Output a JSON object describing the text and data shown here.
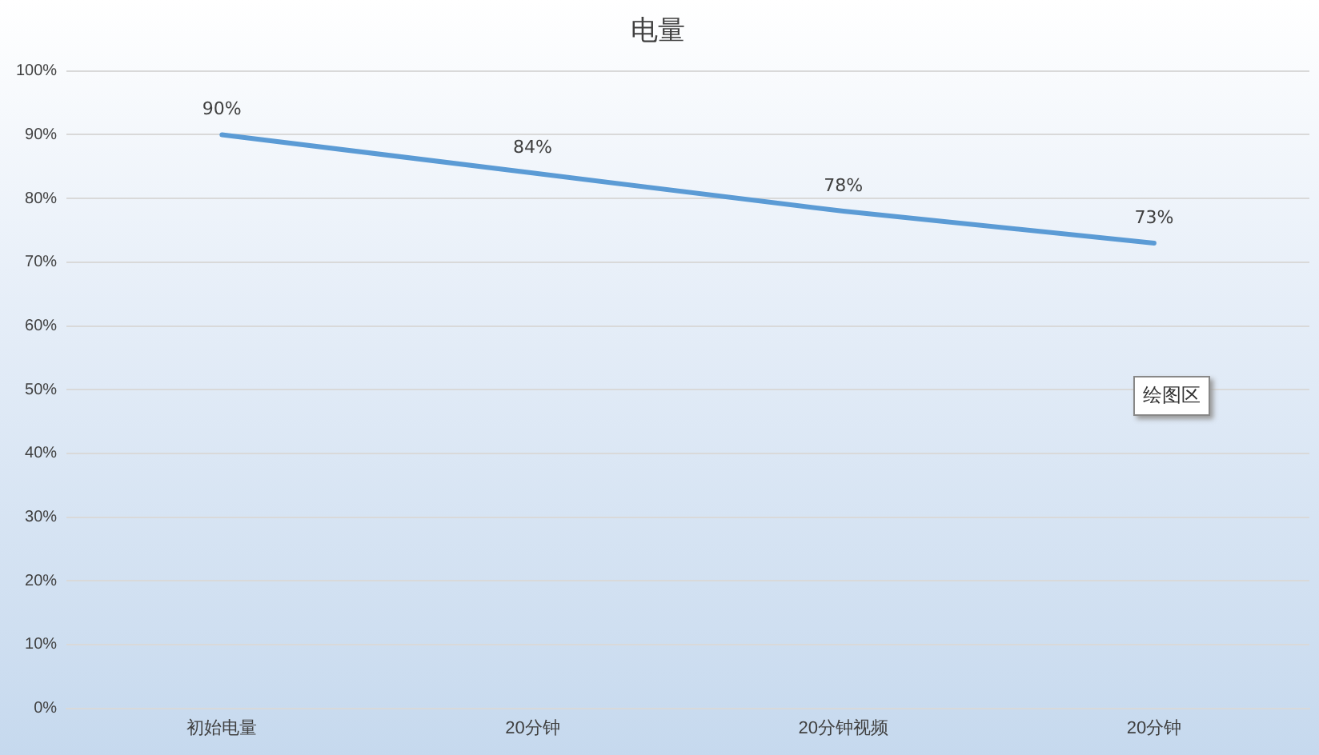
{
  "chart_data": {
    "type": "line",
    "title": "电量",
    "categories": [
      "初始电量",
      "20分钟",
      "20分钟视频",
      "20分钟"
    ],
    "series": [
      {
        "color": "#5b9bd5",
        "values": [
          90,
          84,
          78,
          73
        ],
        "value_labels": [
          "90%",
          "84%",
          "78%",
          "73%"
        ]
      }
    ],
    "ylim": [
      0,
      100
    ],
    "yticks": [
      {
        "value": 0,
        "label": "0%"
      },
      {
        "value": 10,
        "label": "10%"
      },
      {
        "value": 20,
        "label": "20%"
      },
      {
        "value": 30,
        "label": "30%"
      },
      {
        "value": 40,
        "label": "40%"
      },
      {
        "value": 50,
        "label": "50%"
      },
      {
        "value": 60,
        "label": "60%"
      },
      {
        "value": 70,
        "label": "70%"
      },
      {
        "value": 80,
        "label": "80%"
      },
      {
        "value": 90,
        "label": "90%"
      },
      {
        "value": 100,
        "label": "100%"
      }
    ],
    "grid": "y",
    "legend": false,
    "marker": "none",
    "line_style": "solid",
    "annotations": [
      "绘图区"
    ]
  }
}
